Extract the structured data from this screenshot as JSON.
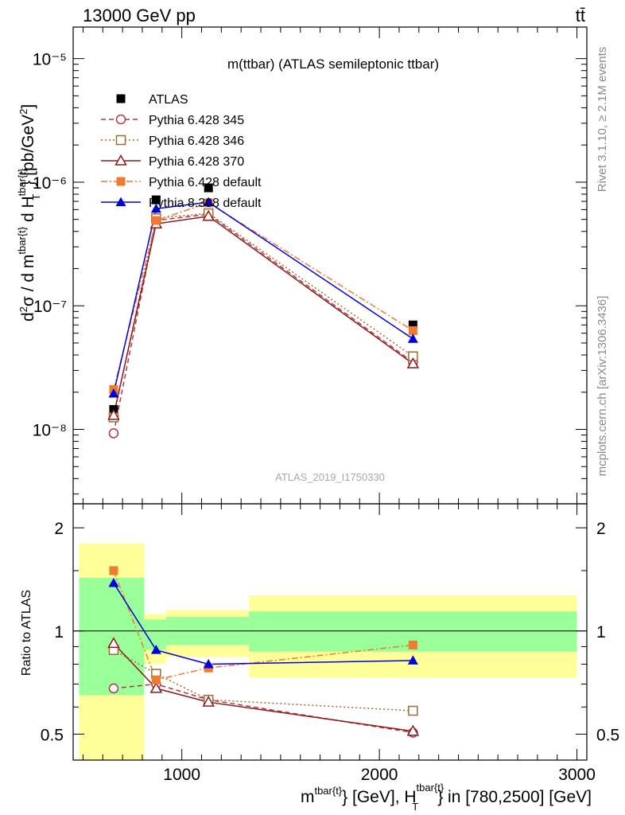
{
  "header": {
    "left": "13000 GeV pp",
    "right": "tt̄"
  },
  "side": {
    "rivet": "Rivet 3.1.10, ≥ 2.1M events",
    "mcplots": "mcplots.cern.ch [arXiv:1306.3436]"
  },
  "chart_data": [
    {
      "type": "scatter",
      "title": "m(ttbar) (ATLAS semileptonic ttbar)",
      "watermark": "ATLAS_2019_I1750330",
      "ylabel": "d²σ / d m^{tbar{t}} d H_T^{tbar{t}} [pb/GeV²]",
      "yscale": "log",
      "ylim": [
        2.5e-09,
        1.8e-05
      ],
      "xlim": [
        450,
        3050
      ],
      "ytick_labels": [
        "10⁻⁸",
        "10⁻⁷",
        "10⁻⁶",
        "10⁻⁵"
      ],
      "legend_position": "top-left",
      "x": [
        655,
        870,
        1135,
        2170
      ],
      "series": [
        {
          "name": "ATLAS",
          "values": [
            1.45e-08,
            7.2e-07,
            9e-07,
            7e-08
          ],
          "color": "#000000",
          "marker": "filled-square",
          "line": "none"
        },
        {
          "name": "Pythia 6.428 345",
          "values": [
            9.3e-09,
            4.9e-07,
            5.5e-07,
            3.5e-08
          ],
          "color": "#b53545",
          "marker": "open-circle",
          "line": "dashed"
        },
        {
          "name": "Pythia 6.428 346",
          "values": [
            1.25e-08,
            5.1e-07,
            5.6e-07,
            3.9e-08
          ],
          "color": "#a06a30",
          "marker": "open-square",
          "line": "dotted"
        },
        {
          "name": "Pythia 6.428 370",
          "values": [
            1.3e-08,
            4.6e-07,
            5.3e-07,
            3.4e-08
          ],
          "color": "#8b1a1a",
          "marker": "open-triangle",
          "line": "solid"
        },
        {
          "name": "Pythia 6.428 default",
          "values": [
            2.1e-08,
            4.9e-07,
            6.8e-07,
            6.3e-08
          ],
          "color": "#f07a30",
          "marker": "filled-square",
          "line": "dashdot"
        },
        {
          "name": "Pythia 8.308 default",
          "values": [
            1.95e-08,
            6.1e-07,
            6.9e-07,
            5.4e-08
          ],
          "color": "#0000dd",
          "marker": "filled-triangle",
          "line": "solid"
        }
      ]
    },
    {
      "type": "scatter",
      "ylabel": "Ratio to ATLAS",
      "xlabel": "m^{tbar{t}} [GeV], H_T^{tbar{t}} in [780,2500] [GeV]",
      "yscale": "log",
      "ylim": [
        0.42,
        2.35
      ],
      "xlim": [
        450,
        3050
      ],
      "xticks": [
        1000,
        2000,
        3000
      ],
      "yticks": [
        0.5,
        1,
        2
      ],
      "reference_line": 1,
      "uncertainty_bands": [
        {
          "x0": 480,
          "x1": 810,
          "inner": [
            0.65,
            1.43
          ],
          "outer": [
            0.35,
            1.8
          ]
        },
        {
          "x0": 810,
          "x1": 920,
          "inner": [
            0.88,
            1.08
          ],
          "outer": [
            0.8,
            1.12
          ]
        },
        {
          "x0": 920,
          "x1": 1340,
          "inner": [
            0.91,
            1.1
          ],
          "outer": [
            0.84,
            1.15
          ]
        },
        {
          "x0": 1340,
          "x1": 3000,
          "inner": [
            0.87,
            1.14
          ],
          "outer": [
            0.73,
            1.27
          ]
        }
      ],
      "x": [
        655,
        870,
        1135,
        2170
      ],
      "series": [
        {
          "name": "Pythia 6.428 345",
          "values": [
            0.68,
            0.7,
            0.63,
            0.505
          ],
          "color": "#b53545",
          "marker": "open-circle",
          "line": "dashed"
        },
        {
          "name": "Pythia 6.428 346",
          "values": [
            0.88,
            0.75,
            0.63,
            0.585
          ],
          "color": "#a06a30",
          "marker": "open-square",
          "line": "dotted"
        },
        {
          "name": "Pythia 6.428 370",
          "values": [
            0.92,
            0.68,
            0.62,
            0.51
          ],
          "color": "#8b1a1a",
          "marker": "open-triangle",
          "line": "solid"
        },
        {
          "name": "Pythia 6.428 default",
          "values": [
            1.5,
            0.72,
            0.78,
            0.91
          ],
          "color": "#f07a30",
          "marker": "filled-square",
          "line": "dashdot"
        },
        {
          "name": "Pythia 8.308 default",
          "values": [
            1.38,
            0.88,
            0.8,
            0.82
          ],
          "color": "#0000dd",
          "marker": "filled-triangle",
          "line": "solid"
        }
      ]
    }
  ]
}
